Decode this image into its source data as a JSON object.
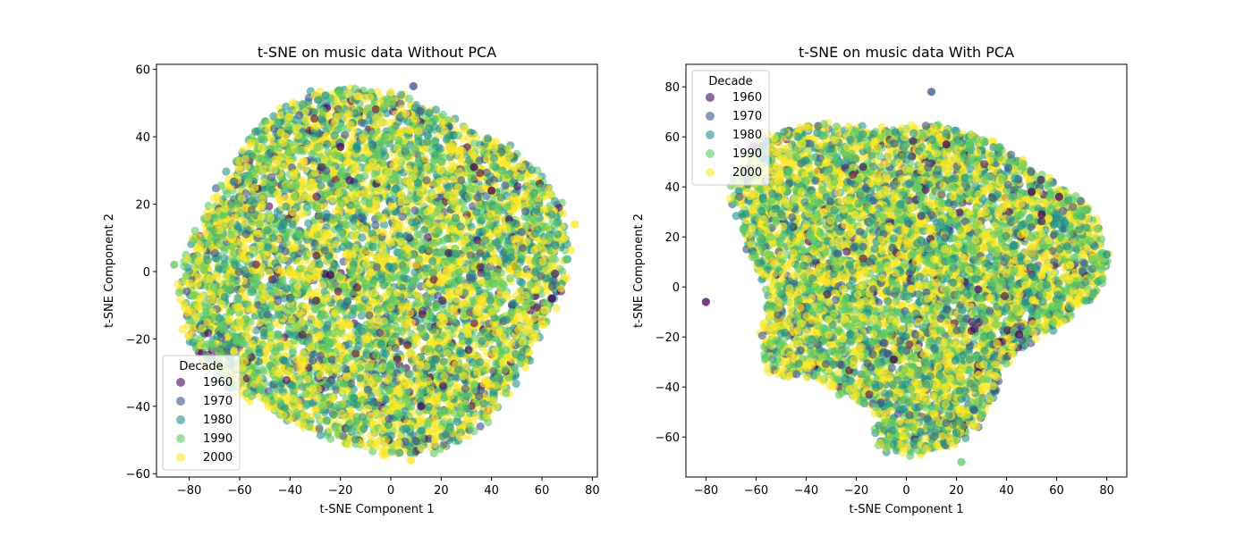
{
  "figure": {
    "background": "#ffffff"
  },
  "decade_colors": {
    "1960": "#440154",
    "1970": "#3b528b",
    "1980": "#21918c",
    "1990": "#5ec962",
    "2000": "#fde725"
  },
  "chart_data": [
    {
      "type": "scatter",
      "title": "t-SNE on music data Without PCA",
      "xlabel": "t-SNE Component 1",
      "ylabel": "t-SNE Component 2",
      "xlim": [
        -93,
        82
      ],
      "ylim": [
        -61,
        61.5
      ],
      "xticks": [
        -80,
        -60,
        -40,
        -20,
        0,
        20,
        40,
        60,
        80
      ],
      "yticks": [
        -60,
        -40,
        -20,
        0,
        20,
        40,
        60
      ],
      "grid": false,
      "legend": {
        "title": "Decade",
        "placement": "lower-left",
        "entries": [
          "1960",
          "1970",
          "1980",
          "1990",
          "2000"
        ]
      },
      "marker_alpha": 0.6,
      "series_weights": {
        "1960": 0.03,
        "1970": 0.07,
        "1980": 0.19,
        "1990": 0.31,
        "2000": 0.4
      },
      "cloud": {
        "shape": "ellipse",
        "center": [
          -7,
          0
        ],
        "x_extent": [
          -86,
          73
        ],
        "y_extent": [
          -56,
          56
        ],
        "n_points": 6500
      },
      "samples": [
        {
          "x": 9,
          "y": 55,
          "decade": "1970"
        },
        {
          "x": 8,
          "y": -56,
          "decade": "2000"
        },
        {
          "x": -86,
          "y": 2,
          "decade": "1990"
        },
        {
          "x": 73,
          "y": 14,
          "decade": "2000"
        },
        {
          "x": -20,
          "y": 37,
          "decade": "1960"
        },
        {
          "x": 40,
          "y": 24,
          "decade": "1960"
        },
        {
          "x": 64,
          "y": -8,
          "decade": "1960"
        },
        {
          "x": -24,
          "y": -1,
          "decade": "1960"
        },
        {
          "x": 12,
          "y": -40,
          "decade": "1960"
        },
        {
          "x": 33,
          "y": 31,
          "decade": "1960"
        }
      ]
    },
    {
      "type": "scatter",
      "title": "t-SNE on music data With PCA",
      "xlabel": "t-SNE Component 1",
      "ylabel": "t-SNE Component 2",
      "xlim": [
        -88,
        88
      ],
      "ylim": [
        -76,
        89
      ],
      "xticks": [
        -80,
        -60,
        -40,
        -20,
        0,
        20,
        40,
        60,
        80
      ],
      "yticks": [
        -60,
        -40,
        -20,
        0,
        20,
        40,
        60,
        80
      ],
      "grid": false,
      "legend": {
        "title": "Decade",
        "placement": "upper-left",
        "entries": [
          "1960",
          "1970",
          "1980",
          "1990",
          "2000"
        ]
      },
      "marker_alpha": 0.6,
      "series_weights": {
        "1960": 0.03,
        "1970": 0.07,
        "1980": 0.19,
        "1990": 0.31,
        "2000": 0.4
      },
      "cloud": {
        "shape": "blob",
        "center": [
          0,
          5
        ],
        "x_extent": [
          -80,
          80
        ],
        "y_extent": [
          -70,
          81
        ],
        "n_points": 6500
      },
      "samples": [
        {
          "x": 10,
          "y": 78,
          "decade": "1970"
        },
        {
          "x": -80,
          "y": -6,
          "decade": "1960"
        },
        {
          "x": 80,
          "y": 13,
          "decade": "1980"
        },
        {
          "x": 22,
          "y": -70,
          "decade": "1990"
        },
        {
          "x": 50,
          "y": 38,
          "decade": "1960"
        },
        {
          "x": 16,
          "y": 57,
          "decade": "1960"
        },
        {
          "x": -5,
          "y": -29,
          "decade": "1960"
        },
        {
          "x": 45,
          "y": -19,
          "decade": "1960"
        },
        {
          "x": 61,
          "y": 36,
          "decade": "1960"
        },
        {
          "x": 54,
          "y": 29,
          "decade": "1960"
        }
      ]
    }
  ]
}
